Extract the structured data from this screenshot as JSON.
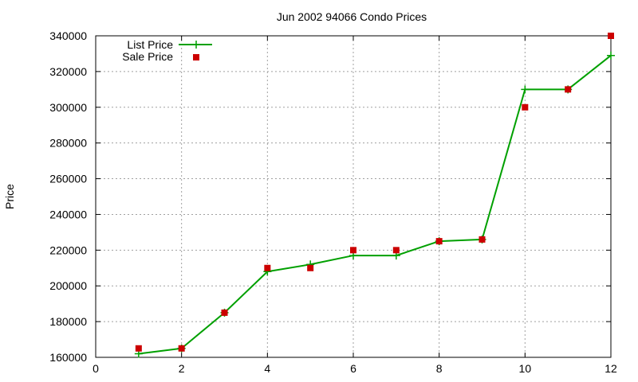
{
  "chart_data": {
    "type": "line",
    "title": "Jun 2002 94066 Condo Prices",
    "xlabel": "",
    "ylabel": "Price",
    "xlim": [
      0,
      12
    ],
    "ylim": [
      160000,
      340000
    ],
    "xticks": [
      0,
      2,
      4,
      6,
      8,
      10,
      12
    ],
    "yticks": [
      160000,
      180000,
      200000,
      220000,
      240000,
      260000,
      280000,
      300000,
      320000,
      340000
    ],
    "grid": true,
    "legend_position": "top-left",
    "series": [
      {
        "name": "List Price",
        "style": "line+cross",
        "color": "#00a000",
        "x": [
          1,
          2,
          3,
          4,
          5,
          6,
          7,
          8,
          9,
          10,
          11,
          12
        ],
        "y": [
          162000,
          165000,
          185000,
          208000,
          212000,
          217000,
          217000,
          225000,
          226000,
          310000,
          310000,
          329000
        ]
      },
      {
        "name": "Sale Price",
        "style": "square",
        "color": "#cc0000",
        "x": [
          1,
          2,
          3,
          4,
          5,
          6,
          7,
          8,
          9,
          10,
          11,
          12
        ],
        "y": [
          165000,
          165000,
          185000,
          210000,
          210000,
          220000,
          220000,
          225000,
          226000,
          300000,
          310000,
          340000
        ]
      }
    ]
  }
}
